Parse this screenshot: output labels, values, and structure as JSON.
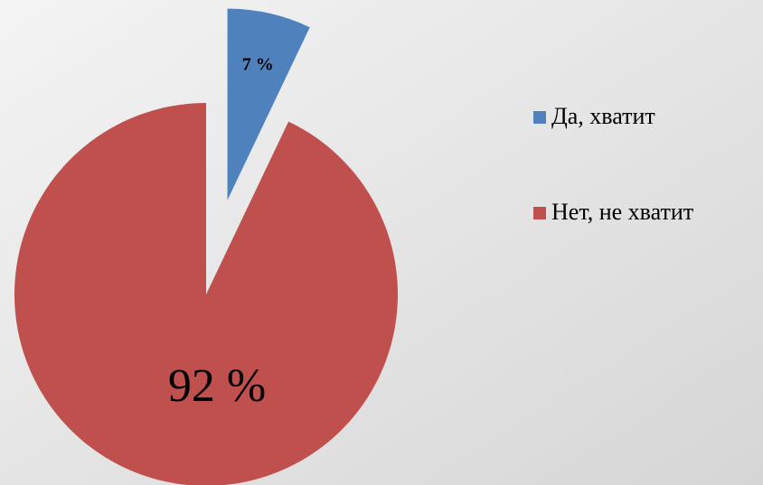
{
  "chart_data": {
    "type": "pie",
    "categories": [
      "Да, хватит",
      "Нет, не хватит"
    ],
    "values": [
      7,
      92
    ],
    "value_labels": [
      "7 %",
      "92 %"
    ],
    "colors": [
      "#4f81bd",
      "#c0504d"
    ],
    "legend": "right"
  }
}
